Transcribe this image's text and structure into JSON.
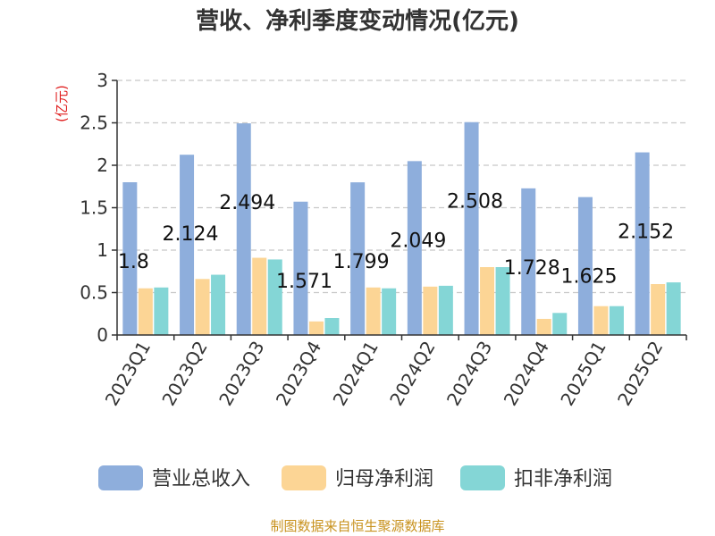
{
  "chart_data": {
    "type": "bar",
    "title": "营收、净利季度变动情况(亿元)",
    "ylabel": "(亿元)",
    "ylim": [
      0,
      3
    ],
    "yticks": [
      0,
      0.5,
      1,
      1.5,
      2,
      2.5,
      3
    ],
    "ytick_labels": [
      "0",
      "0.5",
      "1",
      "1.5",
      "2",
      "2.5",
      "3"
    ],
    "grid": true,
    "legend_position": "bottom",
    "categories": [
      "2023Q1",
      "2023Q2",
      "2023Q3",
      "2023Q4",
      "2024Q1",
      "2024Q2",
      "2024Q3",
      "2024Q4",
      "2025Q1",
      "2025Q2"
    ],
    "series": [
      {
        "name": "营业总收入",
        "color": "#8eaedc",
        "values": [
          1.8,
          2.124,
          2.494,
          1.571,
          1.799,
          2.049,
          2.508,
          1.728,
          1.625,
          2.152
        ],
        "labels": [
          "1.8",
          "2.124",
          "2.494",
          "1.571",
          "1.799",
          "2.049",
          "2.508",
          "1.728",
          "1.625",
          "2.152"
        ]
      },
      {
        "name": "归母净利润",
        "color": "#fcd595",
        "values": [
          0.55,
          0.66,
          0.91,
          0.16,
          0.56,
          0.57,
          0.8,
          0.19,
          0.34,
          0.6
        ]
      },
      {
        "name": "扣非净利润",
        "color": "#84d6d6",
        "values": [
          0.56,
          0.71,
          0.89,
          0.2,
          0.55,
          0.58,
          0.8,
          0.26,
          0.34,
          0.62
        ]
      }
    ]
  },
  "colors": {
    "axis": "#333333",
    "grid": "#c8c8c8",
    "ylabel": "#e02020",
    "source": "#c8921e"
  },
  "footer": {
    "source": "制图数据来自恒生聚源数据库"
  }
}
